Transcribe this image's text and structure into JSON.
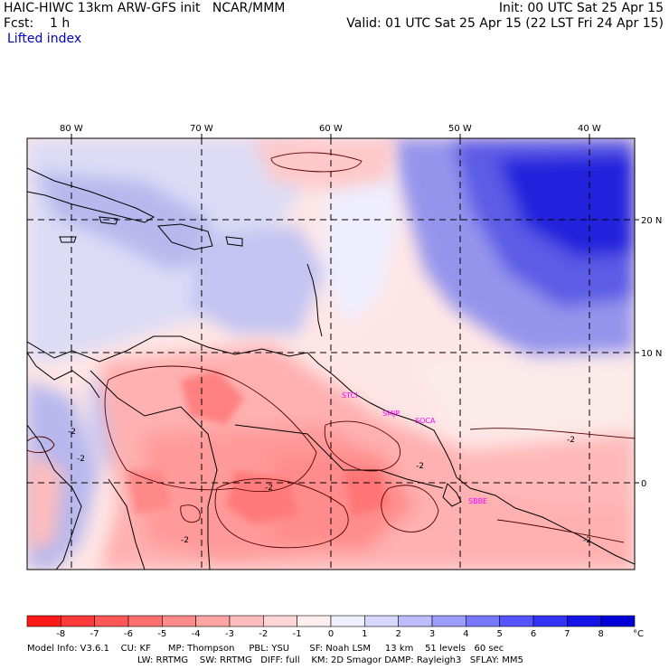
{
  "header": {
    "title": "HAIC-HIWC 13km ARW-GFS init   NCAR/MMM",
    "init": "Init: 00 UTC Sat 25 Apr 15",
    "fcst": "Fcst:    1 h",
    "valid": "Valid: 01 UTC Sat 25 Apr 15 (22 LST Fri 24 Apr 15)",
    "field": "Lifted index"
  },
  "map": {
    "lon_labels": [
      "80 W",
      "70 W",
      "60 W",
      "50 W",
      "40 W"
    ],
    "lat_labels": [
      "20 N",
      "10 N",
      "0"
    ],
    "stations": [
      "STCI",
      "SMJP",
      "SOCA",
      "SBBE"
    ],
    "contour_labels": [
      "-2",
      "-2",
      "-2",
      "-2",
      "-2",
      "-2",
      "-2"
    ]
  },
  "colorbar": {
    "labels": [
      "-8",
      "-7",
      "-6",
      "-5",
      "-4",
      "-3",
      "-2",
      "-1",
      "0",
      "1",
      "2",
      "3",
      "4",
      "5",
      "6",
      "7",
      "8"
    ],
    "unit": "°C",
    "colors": [
      "#ff1a1a",
      "#ff3a3a",
      "#ff5656",
      "#ff6f6f",
      "#ff8a8a",
      "#ffa3a3",
      "#ffbcbc",
      "#ffd6d6",
      "#ffeeee",
      "#eeeeff",
      "#d6d6ff",
      "#bcbcff",
      "#9c9cff",
      "#7878ff",
      "#5555ff",
      "#3333f5",
      "#1414e6",
      "#0000d6"
    ]
  },
  "footer": {
    "line1": "Model Info: V3.6.1    CU: KF      MP: Thompson     PBL: YSU       SF: Noah LSM     13 km    51 levels   60 sec",
    "line2": "LW: RRTMG    SW: RRTMG   DIFF: full    KM: 2D Smagor DAMP: Rayleigh3   SFLAY: MM5"
  }
}
